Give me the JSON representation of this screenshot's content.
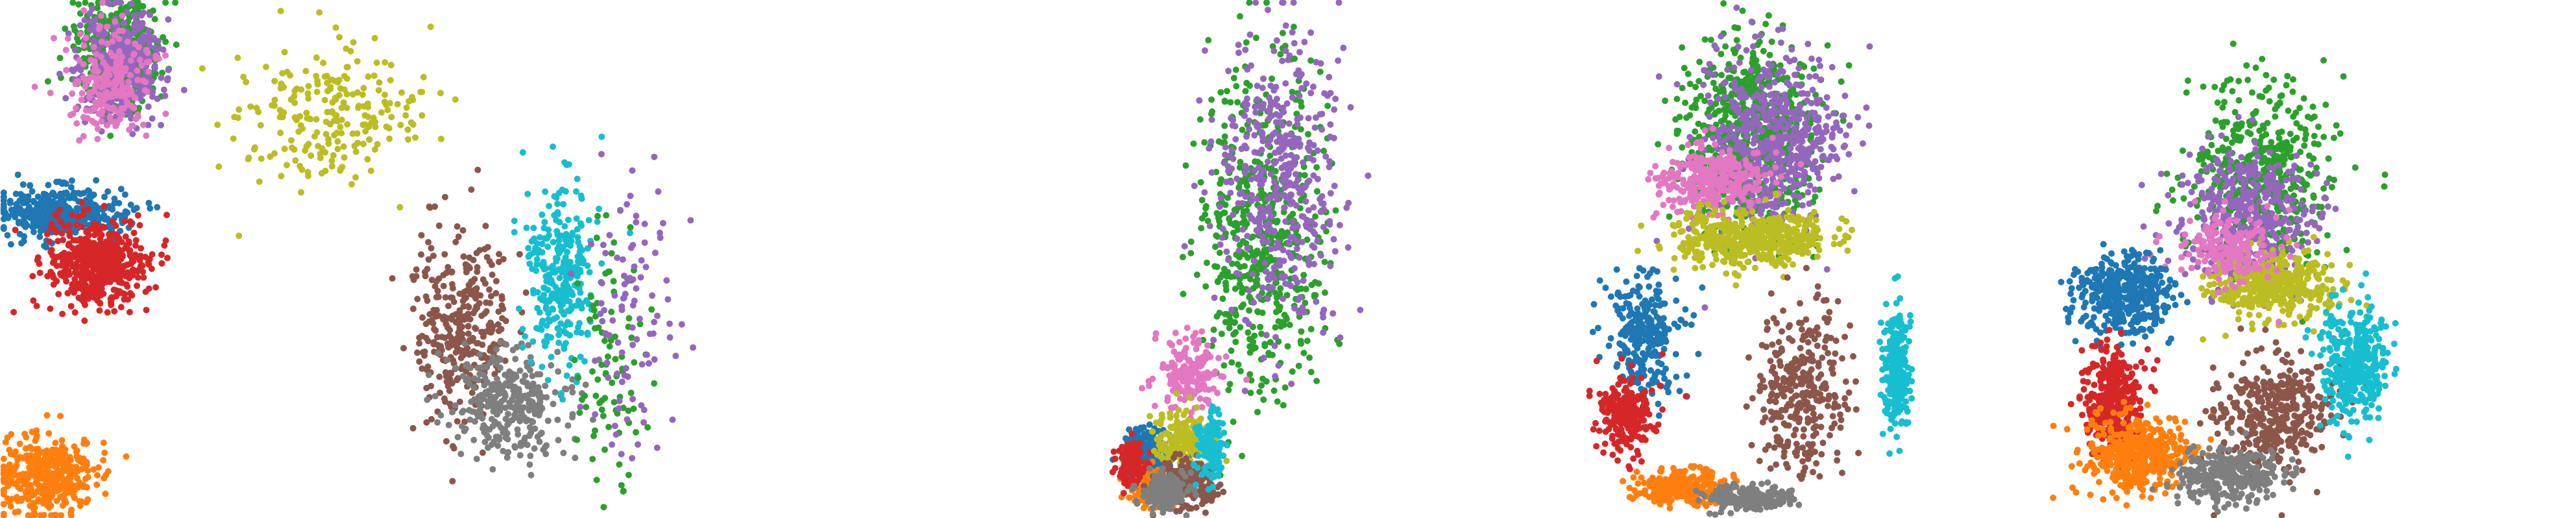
{
  "palette": {
    "c0": "#1f77b4",
    "c1": "#ff7f0e",
    "c2": "#2ca02c",
    "c3": "#d62728",
    "c4": "#9467bd",
    "c5": "#8c564b",
    "c6": "#e377c2",
    "c7": "#7f7f7f",
    "c8": "#bcbd22",
    "c9": "#17becf"
  },
  "chart_data": [
    {
      "type": "scatter",
      "panel": 1,
      "axes": "off",
      "grid": false,
      "legend": "none",
      "clusters": [
        {
          "color": "c2",
          "center": [
            0.16,
            0.1
          ],
          "spread": [
            0.05,
            0.09
          ],
          "n": 500
        },
        {
          "color": "c4",
          "center": [
            0.16,
            0.13
          ],
          "spread": [
            0.05,
            0.1
          ],
          "n": 380
        },
        {
          "color": "c6",
          "center": [
            0.15,
            0.16
          ],
          "spread": [
            0.05,
            0.09
          ],
          "n": 220
        },
        {
          "color": "c0",
          "center": [
            0.08,
            0.41
          ],
          "spread": [
            0.08,
            0.045
          ],
          "n": 380
        },
        {
          "color": "c3",
          "center": [
            0.13,
            0.51
          ],
          "spread": [
            0.06,
            0.08
          ],
          "n": 480
        },
        {
          "color": "c8",
          "center": [
            0.44,
            0.22
          ],
          "spread": [
            0.11,
            0.12
          ],
          "n": 230
        },
        {
          "color": "c1",
          "center": [
            0.06,
            0.92
          ],
          "spread": [
            0.06,
            0.07
          ],
          "n": 400
        },
        {
          "color": "c5",
          "center": [
            0.62,
            0.62
          ],
          "spread": [
            0.06,
            0.17
          ],
          "n": 330
        },
        {
          "color": "c7",
          "center": [
            0.68,
            0.78
          ],
          "spread": [
            0.07,
            0.09
          ],
          "n": 320
        },
        {
          "color": "c9",
          "center": [
            0.75,
            0.53
          ],
          "spread": [
            0.04,
            0.16
          ],
          "n": 300
        },
        {
          "color": "c2",
          "center": [
            0.82,
            0.68
          ],
          "spread": [
            0.04,
            0.22
          ],
          "n": 90
        },
        {
          "color": "c4",
          "center": [
            0.85,
            0.62
          ],
          "spread": [
            0.06,
            0.25
          ],
          "n": 100
        }
      ]
    },
    {
      "type": "scatter",
      "panel": 2,
      "axes": "off",
      "grid": false,
      "legend": "none",
      "clusters": [
        {
          "color": "c2",
          "center": [
            0.55,
            0.45
          ],
          "spread": [
            0.14,
            0.28
          ],
          "n": 560
        },
        {
          "color": "c4",
          "center": [
            0.6,
            0.35
          ],
          "spread": [
            0.14,
            0.26
          ],
          "n": 430
        },
        {
          "color": "c6",
          "center": [
            0.38,
            0.72
          ],
          "spread": [
            0.07,
            0.07
          ],
          "n": 170
        },
        {
          "color": "c0",
          "center": [
            0.28,
            0.88
          ],
          "spread": [
            0.05,
            0.05
          ],
          "n": 230
        },
        {
          "color": "c1",
          "center": [
            0.3,
            0.94
          ],
          "spread": [
            0.05,
            0.03
          ],
          "n": 220
        },
        {
          "color": "c3",
          "center": [
            0.24,
            0.9
          ],
          "spread": [
            0.03,
            0.04
          ],
          "n": 130
        },
        {
          "color": "c8",
          "center": [
            0.36,
            0.85
          ],
          "spread": [
            0.06,
            0.06
          ],
          "n": 170
        },
        {
          "color": "c5",
          "center": [
            0.37,
            0.93
          ],
          "spread": [
            0.06,
            0.04
          ],
          "n": 250
        },
        {
          "color": "c7",
          "center": [
            0.32,
            0.95
          ],
          "spread": [
            0.05,
            0.03
          ],
          "n": 180
        },
        {
          "color": "c9",
          "center": [
            0.43,
            0.86
          ],
          "spread": [
            0.03,
            0.06
          ],
          "n": 120
        }
      ]
    },
    {
      "type": "scatter",
      "panel": 3,
      "axes": "off",
      "grid": false,
      "legend": "none",
      "clusters": [
        {
          "color": "c2",
          "center": [
            0.5,
            0.26
          ],
          "spread": [
            0.14,
            0.18
          ],
          "n": 650
        },
        {
          "color": "c4",
          "center": [
            0.55,
            0.28
          ],
          "spread": [
            0.15,
            0.16
          ],
          "n": 560
        },
        {
          "color": "c6",
          "center": [
            0.4,
            0.35
          ],
          "spread": [
            0.12,
            0.06
          ],
          "n": 320
        },
        {
          "color": "c8",
          "center": [
            0.5,
            0.46
          ],
          "spread": [
            0.17,
            0.05
          ],
          "n": 450
        },
        {
          "color": "c0",
          "center": [
            0.24,
            0.65
          ],
          "spread": [
            0.08,
            0.1
          ],
          "n": 260
        },
        {
          "color": "c3",
          "center": [
            0.2,
            0.8
          ],
          "spread": [
            0.06,
            0.07
          ],
          "n": 220
        },
        {
          "color": "c1",
          "center": [
            0.33,
            0.94
          ],
          "spread": [
            0.1,
            0.03
          ],
          "n": 260
        },
        {
          "color": "c5",
          "center": [
            0.62,
            0.76
          ],
          "spread": [
            0.1,
            0.15
          ],
          "n": 320
        },
        {
          "color": "c7",
          "center": [
            0.48,
            0.96
          ],
          "spread": [
            0.1,
            0.02
          ],
          "n": 220
        },
        {
          "color": "c9",
          "center": [
            0.85,
            0.72
          ],
          "spread": [
            0.03,
            0.1
          ],
          "n": 260
        }
      ]
    },
    {
      "type": "scatter",
      "panel": 4,
      "axes": "off",
      "grid": false,
      "legend": "none",
      "clusters": [
        {
          "color": "c2",
          "center": [
            0.4,
            0.33
          ],
          "spread": [
            0.12,
            0.16
          ],
          "n": 500
        },
        {
          "color": "c4",
          "center": [
            0.38,
            0.42
          ],
          "spread": [
            0.12,
            0.12
          ],
          "n": 430
        },
        {
          "color": "c8",
          "center": [
            0.42,
            0.55
          ],
          "spread": [
            0.1,
            0.06
          ],
          "n": 420
        },
        {
          "color": "c6",
          "center": [
            0.34,
            0.48
          ],
          "spread": [
            0.09,
            0.06
          ],
          "n": 200
        },
        {
          "color": "c0",
          "center": [
            0.14,
            0.57
          ],
          "spread": [
            0.08,
            0.07
          ],
          "n": 400
        },
        {
          "color": "c3",
          "center": [
            0.12,
            0.77
          ],
          "spread": [
            0.05,
            0.1
          ],
          "n": 360
        },
        {
          "color": "c1",
          "center": [
            0.17,
            0.88
          ],
          "spread": [
            0.09,
            0.07
          ],
          "n": 420
        },
        {
          "color": "c5",
          "center": [
            0.42,
            0.8
          ],
          "spread": [
            0.1,
            0.1
          ],
          "n": 380
        },
        {
          "color": "c7",
          "center": [
            0.34,
            0.92
          ],
          "spread": [
            0.09,
            0.05
          ],
          "n": 300
        },
        {
          "color": "c9",
          "center": [
            0.58,
            0.7
          ],
          "spread": [
            0.06,
            0.1
          ],
          "n": 360
        }
      ]
    }
  ]
}
